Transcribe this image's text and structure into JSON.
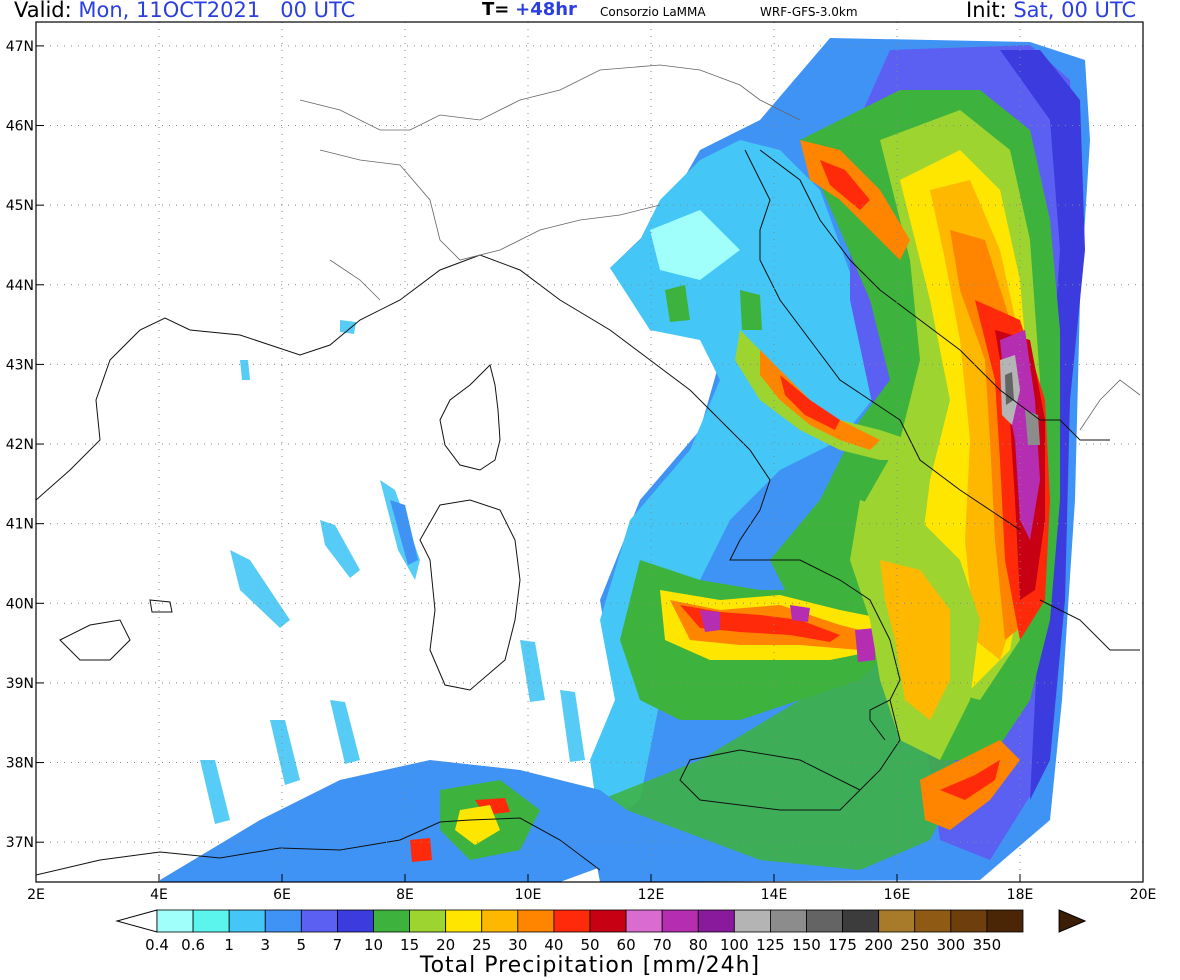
{
  "header": {
    "valid_label": "Valid:",
    "valid_value": "Mon, 11OCT2021   00 UTC",
    "lead_label": "T=",
    "lead_value": "+48hr",
    "source": "Consorzio LaMMA",
    "model": "WRF-GFS-3.0km",
    "init_label": "Init:",
    "init_value": "Sat, 00 UTC"
  },
  "axes": {
    "lat_labels": [
      "47N",
      "46N",
      "45N",
      "44N",
      "43N",
      "42N",
      "41N",
      "40N",
      "39N",
      "38N",
      "37N"
    ],
    "lon_labels": [
      "2E",
      "4E",
      "6E",
      "8E",
      "10E",
      "12E",
      "14E",
      "16E",
      "18E",
      "20E"
    ],
    "lat_range": [
      36.5,
      47.3
    ],
    "lon_range": [
      2,
      20
    ],
    "gridlines": "dotted"
  },
  "colorbar": {
    "title": "Total Precipitation [mm/24h]",
    "levels": [
      "0.4",
      "0.6",
      "1",
      "3",
      "5",
      "7",
      "10",
      "15",
      "20",
      "25",
      "30",
      "40",
      "50",
      "60",
      "70",
      "80",
      "100",
      "125",
      "150",
      "175",
      "200",
      "250",
      "300",
      "350"
    ],
    "colors": [
      "#a0fffa",
      "#5cf5ee",
      "#44c6f6",
      "#3f93f5",
      "#5b60f2",
      "#3b3bde",
      "#3db23c",
      "#9ed430",
      "#ffe600",
      "#ffb800",
      "#ff8400",
      "#ff2a0a",
      "#c80014",
      "#da6cd0",
      "#b52db0",
      "#8a1a9c",
      "#b4b4b4",
      "#8c8c8c",
      "#646464",
      "#3c3c3c",
      "#a87b2a",
      "#8f5a14",
      "#6e3f0c",
      "#4a2606"
    ]
  }
}
